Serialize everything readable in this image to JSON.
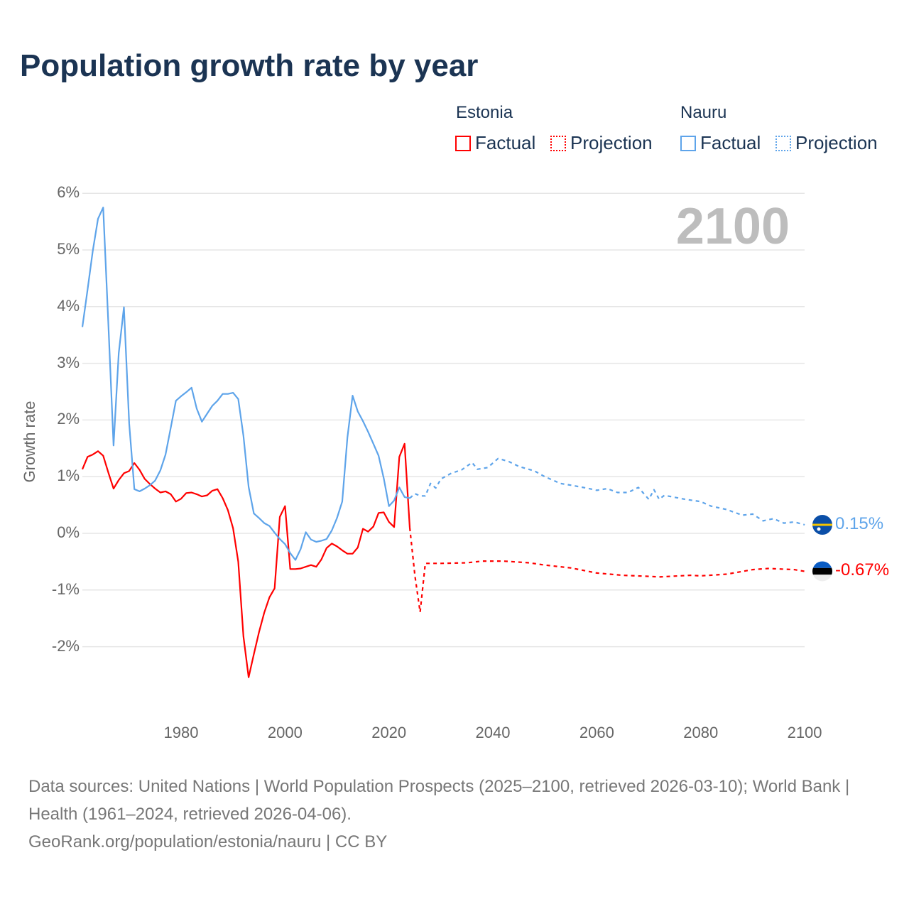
{
  "title": "Population growth rate by year",
  "legend": {
    "groups": [
      {
        "country": "Estonia",
        "factual": "Factual",
        "projection": "Projection",
        "color": "#ff0000"
      },
      {
        "country": "Nauru",
        "factual": "Factual",
        "projection": "Projection",
        "color": "#5ea4ea"
      }
    ]
  },
  "current_year": "2100",
  "footer": {
    "sources": "Data sources: United Nations | World Population Prospects (2025–2100, retrieved 2026-03-10); World Bank | Health (1961–2024, retrieved 2026-04-06).",
    "credit": "GeoRank.org/population/estonia/nauru | CC BY"
  },
  "chart_data": {
    "type": "line",
    "title": "Population growth rate by year",
    "xlabel": "",
    "ylabel": "Growth rate",
    "xlim": [
      1961,
      2100
    ],
    "ylim": [
      -3,
      6
    ],
    "y_ticks": [
      "6%",
      "5%",
      "4%",
      "3%",
      "2%",
      "1%",
      "0%",
      "-1%",
      "-2%"
    ],
    "y_tick_values": [
      6,
      5,
      4,
      3,
      2,
      1,
      0,
      -1,
      -2
    ],
    "x_ticks": [
      "1980",
      "2000",
      "2020",
      "2040",
      "2060",
      "2080",
      "2100"
    ],
    "x_tick_values": [
      1980,
      2000,
      2020,
      2040,
      2060,
      2080,
      2100
    ],
    "grid": true,
    "legend_position": "top-right",
    "series": [
      {
        "name": "Estonia",
        "kind": "factual",
        "color": "#ff0000",
        "start_year": 1961,
        "values": [
          1.13,
          1.35,
          1.39,
          1.45,
          1.37,
          1.07,
          0.79,
          0.94,
          1.06,
          1.1,
          1.24,
          1.12,
          0.96,
          0.87,
          0.79,
          0.72,
          0.74,
          0.69,
          0.56,
          0.61,
          0.71,
          0.72,
          0.69,
          0.65,
          0.67,
          0.75,
          0.78,
          0.62,
          0.41,
          0.09,
          -0.5,
          -1.82,
          -2.54,
          -2.13,
          -1.74,
          -1.4,
          -1.13,
          -0.97,
          0.29,
          0.48,
          -0.63,
          -0.63,
          -0.62,
          -0.59,
          -0.56,
          -0.59,
          -0.46,
          -0.26,
          -0.18,
          -0.23,
          -0.3,
          -0.36,
          -0.36,
          -0.25,
          0.08,
          0.03,
          0.12,
          0.36,
          0.37,
          0.2,
          0.11,
          1.35,
          1.58,
          0.1
        ]
      },
      {
        "name": "Nauru",
        "kind": "factual",
        "color": "#5ea4ea",
        "start_year": 1961,
        "values": [
          3.64,
          4.3,
          4.98,
          5.55,
          5.75,
          3.69,
          1.55,
          3.18,
          3.99,
          1.94,
          0.78,
          0.74,
          0.79,
          0.85,
          0.93,
          1.11,
          1.39,
          1.86,
          2.34,
          2.42,
          2.49,
          2.57,
          2.2,
          1.97,
          2.11,
          2.25,
          2.34,
          2.46,
          2.46,
          2.48,
          2.37,
          1.72,
          0.82,
          0.35,
          0.27,
          0.18,
          0.13,
          0.01,
          -0.1,
          -0.19,
          -0.35,
          -0.47,
          -0.28,
          0.02,
          -0.11,
          -0.15,
          -0.13,
          -0.1,
          0.05,
          0.27,
          0.56,
          1.69,
          2.43,
          2.15,
          1.98,
          1.79,
          1.58,
          1.37,
          0.97,
          0.48,
          0.58,
          0.81,
          0.64,
          0.62
        ]
      },
      {
        "name": "Estonia",
        "kind": "projection",
        "color": "#ff0000",
        "points": [
          [
            2024,
            0.1
          ],
          [
            2025,
            -0.75
          ],
          [
            2026,
            -1.39
          ],
          [
            2027,
            -0.53
          ],
          [
            2030,
            -0.53
          ],
          [
            2035,
            -0.52
          ],
          [
            2038,
            -0.49
          ],
          [
            2042,
            -0.49
          ],
          [
            2047,
            -0.52
          ],
          [
            2050,
            -0.56
          ],
          [
            2055,
            -0.61
          ],
          [
            2060,
            -0.7
          ],
          [
            2065,
            -0.74
          ],
          [
            2070,
            -0.76
          ],
          [
            2072,
            -0.77
          ],
          [
            2078,
            -0.74
          ],
          [
            2080,
            -0.75
          ],
          [
            2085,
            -0.72
          ],
          [
            2090,
            -0.64
          ],
          [
            2093,
            -0.62
          ],
          [
            2098,
            -0.64
          ],
          [
            2100,
            -0.67
          ]
        ]
      },
      {
        "name": "Nauru",
        "kind": "projection",
        "color": "#5ea4ea",
        "points": [
          [
            2024,
            0.62
          ],
          [
            2025,
            0.7
          ],
          [
            2026,
            0.66
          ],
          [
            2027,
            0.66
          ],
          [
            2028,
            0.88
          ],
          [
            2029,
            0.8
          ],
          [
            2030,
            0.96
          ],
          [
            2032,
            1.06
          ],
          [
            2034,
            1.12
          ],
          [
            2036,
            1.25
          ],
          [
            2037,
            1.13
          ],
          [
            2039,
            1.16
          ],
          [
            2041,
            1.32
          ],
          [
            2043,
            1.27
          ],
          [
            2045,
            1.18
          ],
          [
            2048,
            1.1
          ],
          [
            2050,
            1.0
          ],
          [
            2053,
            0.88
          ],
          [
            2055,
            0.85
          ],
          [
            2058,
            0.8
          ],
          [
            2060,
            0.76
          ],
          [
            2062,
            0.79
          ],
          [
            2064,
            0.72
          ],
          [
            2066,
            0.72
          ],
          [
            2068,
            0.81
          ],
          [
            2070,
            0.6
          ],
          [
            2071,
            0.77
          ],
          [
            2072,
            0.6
          ],
          [
            2073,
            0.67
          ],
          [
            2077,
            0.6
          ],
          [
            2080,
            0.56
          ],
          [
            2082,
            0.48
          ],
          [
            2085,
            0.42
          ],
          [
            2088,
            0.32
          ],
          [
            2090,
            0.34
          ],
          [
            2092,
            0.22
          ],
          [
            2094,
            0.26
          ],
          [
            2096,
            0.18
          ],
          [
            2098,
            0.2
          ],
          [
            2100,
            0.15
          ]
        ]
      }
    ],
    "end_labels": [
      {
        "country": "Nauru",
        "text": "0.15%",
        "value": 0.15,
        "color": "#5ea4ea"
      },
      {
        "country": "Estonia",
        "text": "-0.67%",
        "value": -0.67,
        "color": "#ff0000"
      }
    ]
  }
}
